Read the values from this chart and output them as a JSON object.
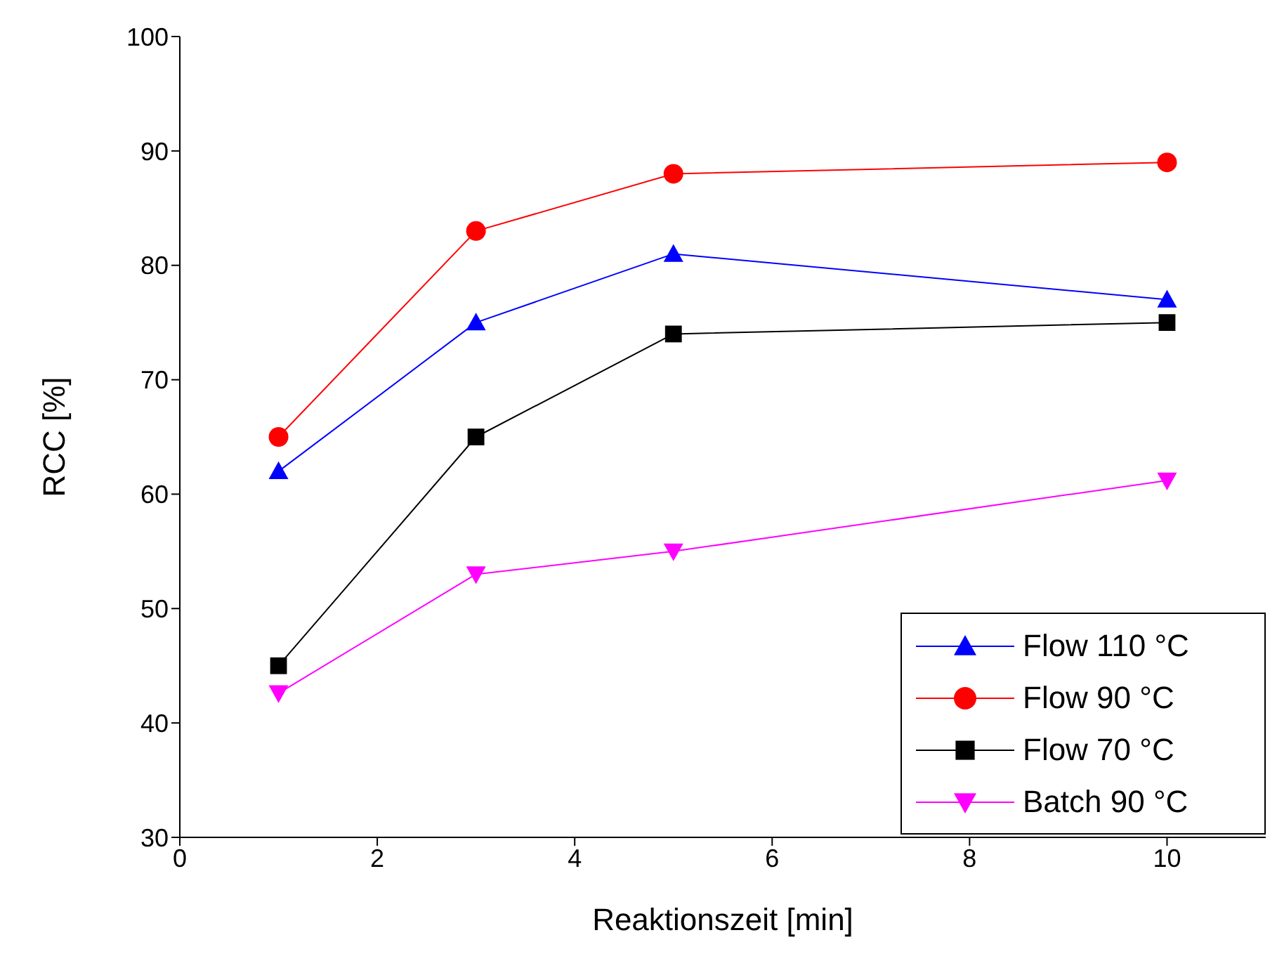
{
  "chart_data": {
    "type": "line",
    "xlabel": "Reaktionszeit [min]",
    "ylabel": "RCC [%]",
    "xlim": [
      0,
      11
    ],
    "xticks": [
      0,
      2,
      4,
      6,
      8,
      10
    ],
    "ylim": [
      30,
      100
    ],
    "yticks": [
      30,
      40,
      50,
      60,
      70,
      80,
      90,
      100
    ],
    "grid": false,
    "legend": "bottom right",
    "x": [
      1,
      3,
      5,
      10
    ],
    "series": [
      {
        "name": "Flow 110 °C",
        "color": "#0000ff",
        "marker": "triangle",
        "values": [
          62,
          75,
          81,
          77
        ]
      },
      {
        "name": "Flow 90 °C",
        "color": "#ff0000",
        "marker": "circle",
        "values": [
          65,
          83,
          88,
          89
        ]
      },
      {
        "name": "Flow 70 °C",
        "color": "#000000",
        "marker": "square",
        "values": [
          45,
          65,
          74,
          75
        ]
      },
      {
        "name": "Batch 90 °C",
        "color": "#ff00ff",
        "marker": "triangle-down",
        "values": [
          42.6,
          53,
          55,
          61.2
        ]
      }
    ]
  }
}
